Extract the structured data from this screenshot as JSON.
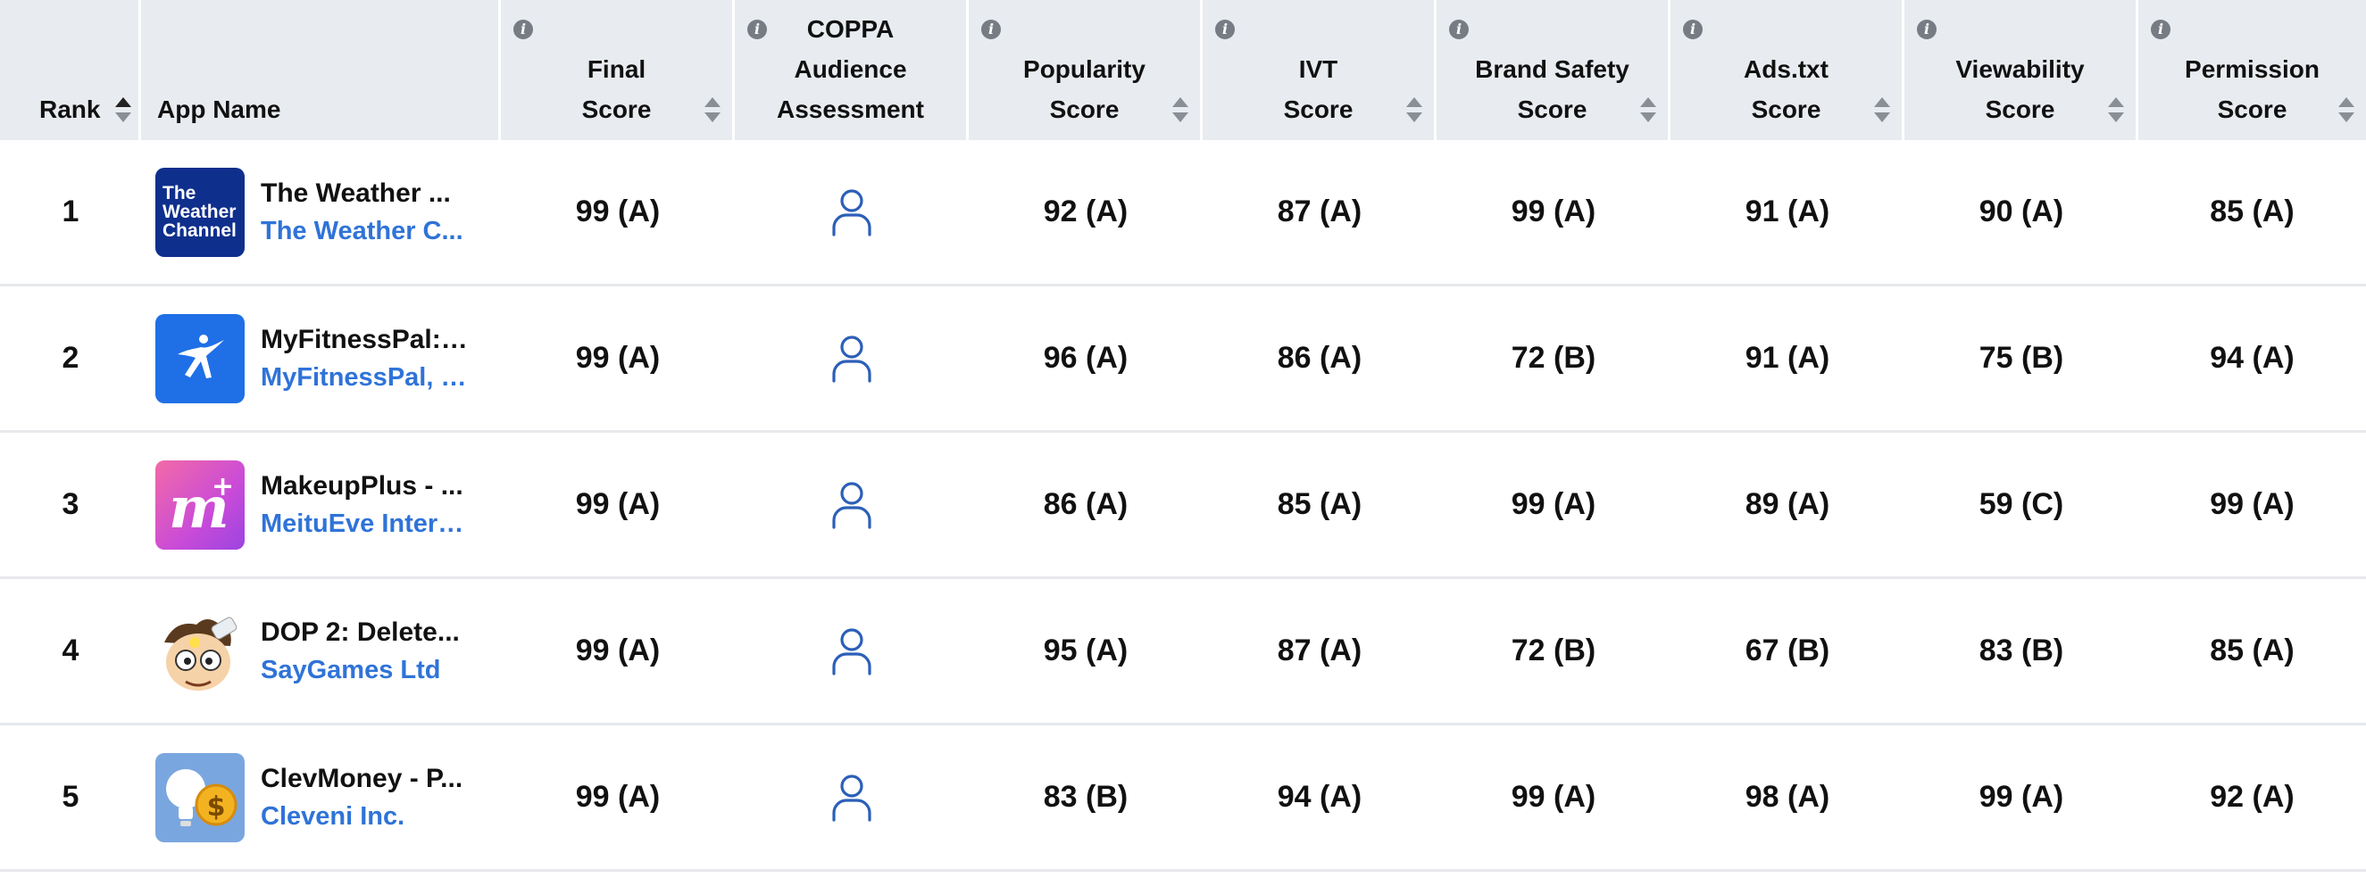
{
  "columns": {
    "rank": "Rank",
    "app_name": "App Name",
    "final": [
      "Final",
      "Score"
    ],
    "coppa": [
      "COPPA",
      "Audience",
      "Assessment"
    ],
    "popularity": [
      "Popularity",
      "Score"
    ],
    "ivt": [
      "IVT",
      "Score"
    ],
    "brand_safety": [
      "Brand Safety",
      "Score"
    ],
    "adstxt": [
      "Ads.txt",
      "Score"
    ],
    "viewability": [
      "Viewability",
      "Score"
    ],
    "permission": [
      "Permission",
      "Score"
    ]
  },
  "info_icon": "info-icon",
  "sort_icon": "sort-icon",
  "coppa_icon": "person-outline-icon",
  "colors": {
    "header_bg": "#e8ebef",
    "link": "#2f73d8",
    "coppa_icon": "#2c5fb8"
  },
  "rows": [
    {
      "rank": "1",
      "app": "The Weather ...",
      "developer": "The Weather C...",
      "icon": "weather-channel-logo",
      "icon_text": [
        "The",
        "Weather",
        "Channel"
      ],
      "final": "99 (A)",
      "popularity": "92 (A)",
      "ivt": "87 (A)",
      "brand_safety": "99 (A)",
      "adstxt": "91 (A)",
      "viewability": "90 (A)",
      "permission": "85 (A)"
    },
    {
      "rank": "2",
      "app": "MyFitnessPal: ...",
      "developer": "MyFitnessPal, I...",
      "icon": "myfitnesspal-logo",
      "final": "99 (A)",
      "popularity": "96 (A)",
      "ivt": "86 (A)",
      "brand_safety": "72 (B)",
      "adstxt": "91 (A)",
      "viewability": "75 (B)",
      "permission": "94 (A)"
    },
    {
      "rank": "3",
      "app": "MakeupPlus - ...",
      "developer": "MeituEve Intern...",
      "icon": "makeupplus-logo",
      "final": "99 (A)",
      "popularity": "86 (A)",
      "ivt": "85 (A)",
      "brand_safety": "99 (A)",
      "adstxt": "89 (A)",
      "viewability": "59 (C)",
      "permission": "99 (A)"
    },
    {
      "rank": "4",
      "app": "DOP 2: Delete...",
      "developer": "SayGames Ltd",
      "icon": "dop2-logo",
      "final": "99 (A)",
      "popularity": "95 (A)",
      "ivt": "87 (A)",
      "brand_safety": "72 (B)",
      "adstxt": "67 (B)",
      "viewability": "83 (B)",
      "permission": "85 (A)"
    },
    {
      "rank": "5",
      "app": "ClevMoney - P...",
      "developer": "Cleveni Inc.",
      "icon": "clevmoney-logo",
      "final": "99 (A)",
      "popularity": "83 (B)",
      "ivt": "94 (A)",
      "brand_safety": "99 (A)",
      "adstxt": "98 (A)",
      "viewability": "99 (A)",
      "permission": "92 (A)"
    }
  ]
}
